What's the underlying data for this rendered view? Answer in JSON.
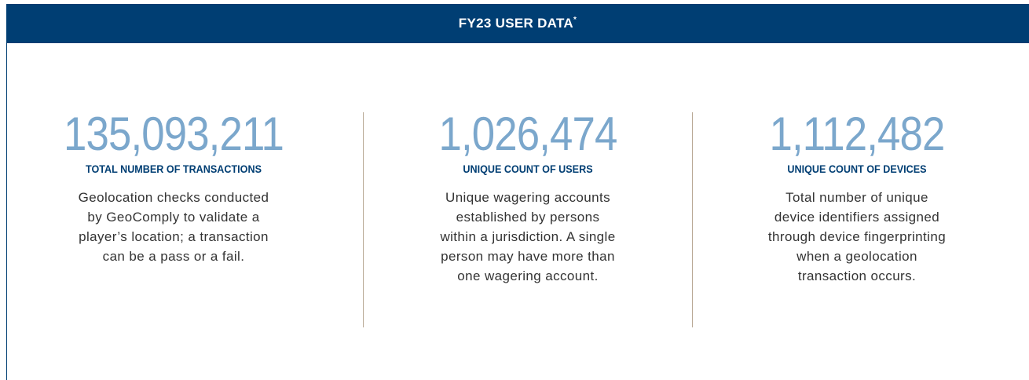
{
  "header": {
    "title": "FY23 USER DATA",
    "mark": "*"
  },
  "stats": [
    {
      "value": "135,093,211",
      "label": "TOTAL NUMBER OF TRANSACTIONS",
      "description": [
        "Geolocation checks conducted",
        "by GeoComply to validate a",
        "player’s location; a transaction",
        "can be a pass or a fail."
      ]
    },
    {
      "value": "1,026,474",
      "label": "UNIQUE COUNT OF USERS",
      "description": [
        "Unique wagering accounts",
        "established by persons",
        "within a jurisdiction. A single",
        "person may have more than",
        "one wagering account."
      ]
    },
    {
      "value": "1,112,482",
      "label": "UNIQUE COUNT OF DEVICES",
      "description": [
        "Total number of unique",
        "device identifiers assigned",
        "through device fingerprinting",
        "when a geolocation",
        "transaction occurs."
      ]
    }
  ]
}
